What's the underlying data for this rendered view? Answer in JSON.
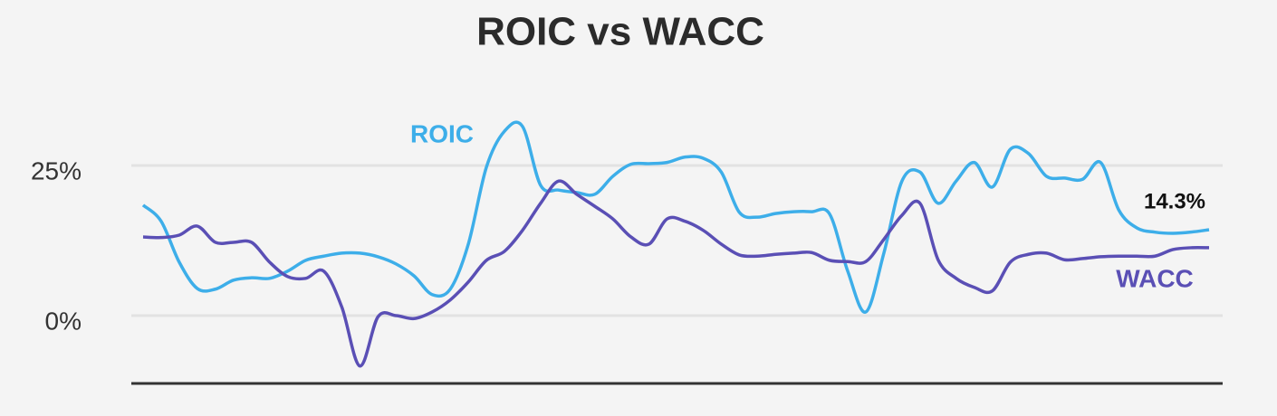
{
  "chart_data": {
    "type": "line",
    "title": "ROIC vs WACC",
    "categories": [
      null,
      null,
      null,
      null,
      null,
      null,
      null,
      null,
      null,
      null,
      null,
      null,
      null,
      null,
      null,
      null,
      null,
      null,
      null,
      null,
      null,
      null,
      null,
      null,
      null,
      null,
      null,
      null,
      null,
      null,
      null,
      null,
      null,
      null,
      null,
      null,
      null,
      null,
      null,
      null,
      null,
      null,
      null,
      null,
      null,
      null,
      null,
      null,
      null,
      null,
      null,
      null,
      null,
      null,
      null,
      null,
      null,
      null,
      null,
      null
    ],
    "series": [
      {
        "name": "ROIC",
        "color": "#3daee9",
        "values": [
          18.4,
          15.7,
          8.9,
          4.5,
          4.4,
          5.9,
          6.3,
          6.2,
          7.4,
          9.2,
          9.9,
          10.4,
          10.4,
          9.8,
          8.6,
          6.6,
          3.5,
          4.4,
          11.9,
          24.7,
          30.7,
          31.5,
          21.7,
          20.9,
          20.5,
          20.2,
          23.2,
          25.2,
          25.3,
          25.5,
          26.4,
          26.2,
          23.9,
          17.2,
          16.4,
          17.0,
          17.3,
          17.3,
          16.9,
          7.4,
          0.6,
          10.4,
          22.4,
          23.9,
          18.7,
          22.4,
          25.5,
          21.4,
          27.7,
          27.0,
          23.2,
          22.9,
          22.7,
          25.5,
          17.6,
          14.6,
          13.9,
          13.7,
          13.9,
          14.3
        ],
        "value_labels": [
          null,
          null,
          null,
          null,
          null,
          null,
          null,
          null,
          null,
          null,
          null,
          null,
          null,
          null,
          null,
          null,
          null,
          null,
          null,
          null,
          null,
          null,
          null,
          null,
          null,
          null,
          null,
          null,
          null,
          null,
          null,
          null,
          null,
          null,
          null,
          null,
          null,
          null,
          null,
          null,
          null,
          null,
          null,
          null,
          null,
          null,
          null,
          null,
          null,
          null,
          null,
          null,
          null,
          null,
          null,
          null,
          null,
          null,
          null,
          "14.3%"
        ]
      },
      {
        "name": "WACC",
        "color": "#5a4fb5",
        "values": [
          13.1,
          13.0,
          13.4,
          14.9,
          12.2,
          12.2,
          12.2,
          8.9,
          6.5,
          6.2,
          7.4,
          1.4,
          -8.4,
          -0.2,
          0,
          -0.5,
          0.6,
          2.6,
          5.6,
          9.2,
          10.7,
          14.2,
          18.7,
          22.4,
          20.2,
          18.2,
          16.1,
          13.1,
          11.9,
          16.1,
          15.7,
          14.2,
          11.9,
          10.1,
          9.9,
          10.2,
          10.4,
          10.5,
          9.2,
          9.0,
          9.0,
          12.7,
          16.7,
          18.7,
          9.3,
          6.2,
          4.7,
          4.1,
          8.9,
          10.2,
          10.4,
          9.3,
          9.5,
          9.8,
          9.9,
          9.9,
          9.9,
          11.0,
          11.3,
          11.3
        ]
      }
    ],
    "ylim": [
      -11.3,
      37
    ],
    "yticks": [
      {
        "value": 0,
        "label": "0%"
      },
      {
        "value": 25,
        "label": "25%"
      }
    ],
    "grid": true
  }
}
